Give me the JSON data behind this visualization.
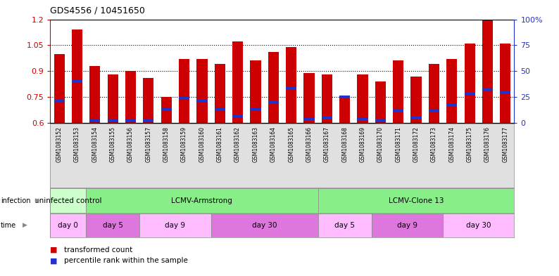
{
  "title": "GDS4556 / 10451650",
  "gsm_labels": [
    "GSM1083152",
    "GSM1083153",
    "GSM1083154",
    "GSM1083155",
    "GSM1083156",
    "GSM1083157",
    "GSM1083158",
    "GSM1083159",
    "GSM1083160",
    "GSM1083161",
    "GSM1083162",
    "GSM1083163",
    "GSM1083164",
    "GSM1083165",
    "GSM1083166",
    "GSM1083167",
    "GSM1083168",
    "GSM1083169",
    "GSM1083170",
    "GSM1083171",
    "GSM1083172",
    "GSM1083173",
    "GSM1083174",
    "GSM1083175",
    "GSM1083176",
    "GSM1083177"
  ],
  "bar_values": [
    1.0,
    1.14,
    0.93,
    0.88,
    0.9,
    0.86,
    0.75,
    0.97,
    0.97,
    0.94,
    1.07,
    0.96,
    1.01,
    1.04,
    0.89,
    0.88,
    0.75,
    0.88,
    0.84,
    0.96,
    0.87,
    0.94,
    0.97,
    1.06,
    1.2,
    1.06
  ],
  "percentile_values": [
    0.73,
    0.84,
    0.61,
    0.61,
    0.61,
    0.61,
    0.68,
    0.745,
    0.73,
    0.68,
    0.64,
    0.68,
    0.72,
    0.8,
    0.62,
    0.63,
    0.75,
    0.62,
    0.61,
    0.67,
    0.63,
    0.67,
    0.7,
    0.77,
    0.79,
    0.78
  ],
  "bar_color": "#cc0000",
  "percentile_color": "#2233cc",
  "ymin": 0.6,
  "ymax": 1.2,
  "yticks": [
    0.6,
    0.75,
    0.9,
    1.05,
    1.2
  ],
  "ytick_labels": [
    "0.6",
    "0.75",
    "0.9",
    "1.05",
    "1.2"
  ],
  "pct_yticks": [
    0,
    25,
    50,
    75,
    100
  ],
  "pct_ytick_labels": [
    "0",
    "25",
    "50",
    "75",
    "100%"
  ],
  "infection_spans": [
    {
      "label": "uninfected control",
      "start": 0,
      "end": 2,
      "color": "#ccffcc"
    },
    {
      "label": "LCMV-Armstrong",
      "start": 2,
      "end": 15,
      "color": "#88ee88"
    },
    {
      "label": "LCMV-Clone 13",
      "start": 15,
      "end": 26,
      "color": "#88ee88"
    }
  ],
  "time_spans": [
    {
      "label": "day 0",
      "start": 0,
      "end": 2,
      "color": "#ffbbff"
    },
    {
      "label": "day 5",
      "start": 2,
      "end": 5,
      "color": "#dd77dd"
    },
    {
      "label": "day 9",
      "start": 5,
      "end": 9,
      "color": "#ffbbff"
    },
    {
      "label": "day 30",
      "start": 9,
      "end": 15,
      "color": "#dd77dd"
    },
    {
      "label": "day 5",
      "start": 15,
      "end": 18,
      "color": "#ffbbff"
    },
    {
      "label": "day 9",
      "start": 18,
      "end": 22,
      "color": "#dd77dd"
    },
    {
      "label": "day 30",
      "start": 22,
      "end": 26,
      "color": "#ffbbff"
    }
  ],
  "bar_width": 0.6,
  "pct_bar_height": 0.016,
  "fig_width": 7.94,
  "fig_height": 3.93,
  "dpi": 100,
  "label_color_even": "#e0e0e0",
  "label_color_odd": "#e0e0e0"
}
